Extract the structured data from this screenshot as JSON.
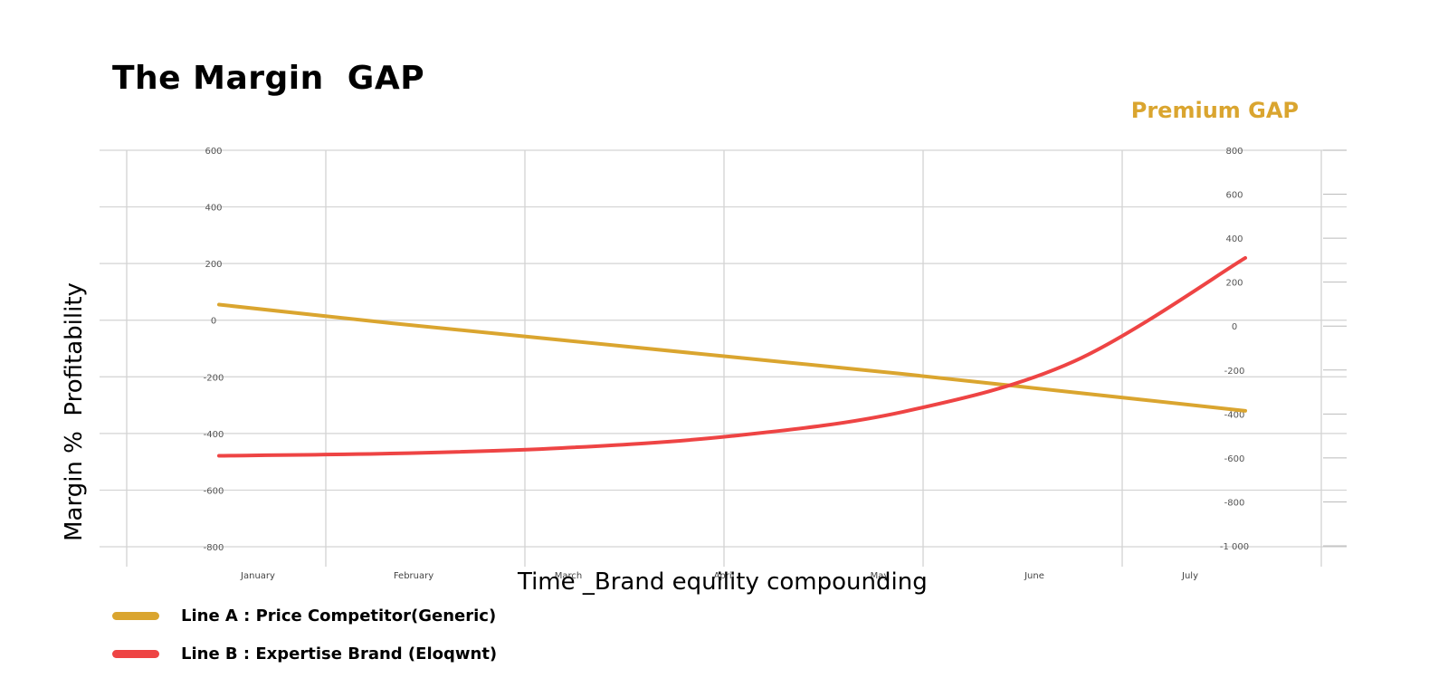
{
  "chart_data": {
    "type": "line",
    "title": "The Margin  GAP",
    "annotation": "Premium GAP",
    "xlabel": "Time _Brand equility compounding",
    "ylabel": "Margin %  Profitability",
    "categories": [
      "January",
      "February",
      "March",
      "April",
      "May",
      "June",
      "July"
    ],
    "left_axis": {
      "ticks": [
        "600",
        "400",
        "200",
        "0",
        "-200",
        "-400",
        "-600",
        "-800"
      ],
      "ylim": [
        -800,
        600
      ]
    },
    "right_axis": {
      "ticks": [
        "800",
        "600",
        "400",
        "200",
        "0",
        "-200",
        "-400",
        "-600",
        "-800",
        "-1 000"
      ],
      "ylim": [
        -1000,
        800
      ]
    },
    "grid": true,
    "legend_position": "bottom-left",
    "series": [
      {
        "name": "Line A : Price Competitor(Generic)",
        "color": "#DAA52F",
        "axis": "left",
        "values": [
          55,
          -10,
          -70,
          -130,
          -190,
          -255,
          -320
        ]
      },
      {
        "name": "Line B : Expertise Brand (Eloqwnt)",
        "color": "#EE4444",
        "axis": "right",
        "values": [
          -590,
          -580,
          -555,
          -500,
          -390,
          -160,
          310
        ]
      }
    ]
  }
}
